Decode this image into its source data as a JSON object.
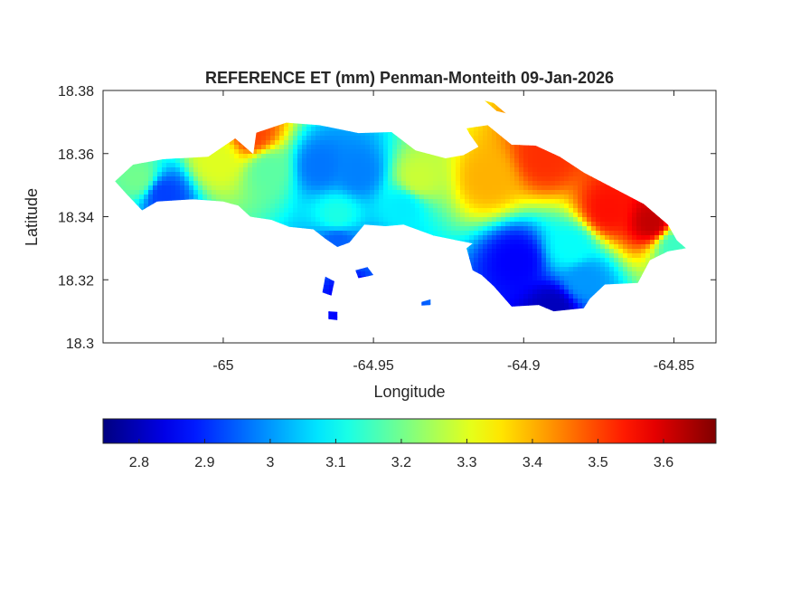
{
  "chart_data": {
    "type": "heatmap",
    "title": "REFERENCE ET (mm) Penman-Monteith 09-Jan-2026",
    "xlabel": "Longitude",
    "ylabel": "Latitude",
    "xlim": [
      -65.04,
      -64.836
    ],
    "ylim": [
      18.3,
      18.38
    ],
    "xticks": [
      -65,
      -64.95,
      -64.9,
      -64.85
    ],
    "xtick_labels": [
      "-65",
      "-64.95",
      "-64.9",
      "-64.85"
    ],
    "yticks": [
      18.3,
      18.32,
      18.34,
      18.36,
      18.38
    ],
    "ytick_labels": [
      "18.3",
      "18.32",
      "18.34",
      "18.36",
      "18.38"
    ],
    "grid": false,
    "colormap": "jet",
    "colorbar": {
      "position": "bottom",
      "range": [
        2.745,
        3.68
      ],
      "ticks": [
        2.8,
        2.9,
        3.0,
        3.1,
        3.2,
        3.3,
        3.4,
        3.5,
        3.6
      ],
      "tick_labels": [
        "2.8",
        "2.9",
        "3",
        "3.1",
        "3.2",
        "3.3",
        "3.4",
        "3.5",
        "3.6"
      ]
    },
    "value_blobs": [
      {
        "lon": -64.893,
        "lat": 18.359,
        "value": 3.52
      },
      {
        "lon": -64.872,
        "lat": 18.342,
        "value": 3.55
      },
      {
        "lon": -64.857,
        "lat": 18.338,
        "value": 3.62
      },
      {
        "lon": -64.912,
        "lat": 18.352,
        "value": 3.4
      },
      {
        "lon": -64.935,
        "lat": 18.352,
        "value": 3.28
      },
      {
        "lon": -64.884,
        "lat": 18.33,
        "value": 3.1
      },
      {
        "lon": -64.902,
        "lat": 18.326,
        "value": 2.86
      },
      {
        "lon": -64.88,
        "lat": 18.32,
        "value": 3.0
      },
      {
        "lon": -64.955,
        "lat": 18.354,
        "value": 2.98
      },
      {
        "lon": -64.968,
        "lat": 18.356,
        "value": 2.97
      },
      {
        "lon": -64.985,
        "lat": 18.355,
        "value": 3.18
      },
      {
        "lon": -64.99,
        "lat": 18.366,
        "value": 3.5
      },
      {
        "lon": -65.02,
        "lat": 18.347,
        "value": 2.92
      },
      {
        "lon": -65.028,
        "lat": 18.352,
        "value": 3.2
      },
      {
        "lon": -65.002,
        "lat": 18.358,
        "value": 3.3
      },
      {
        "lon": -64.962,
        "lat": 18.34,
        "value": 3.12
      },
      {
        "lon": -64.94,
        "lat": 18.343,
        "value": 3.08
      },
      {
        "lon": -64.85,
        "lat": 18.331,
        "value": 3.15
      },
      {
        "lon": -64.962,
        "lat": 18.332,
        "value": 2.95
      },
      {
        "lon": -64.948,
        "lat": 18.325,
        "value": 2.94
      },
      {
        "lon": -64.955,
        "lat": 18.315,
        "value": 2.85
      },
      {
        "lon": -64.89,
        "lat": 18.311,
        "value": 2.8
      }
    ],
    "land_outline": [
      [
        -65.036,
        18.3512
      ],
      [
        -65.03,
        18.3565
      ],
      [
        -65.02,
        18.3582
      ],
      [
        -65.005,
        18.359
      ],
      [
        -64.996,
        18.3648
      ],
      [
        -64.99,
        18.3598
      ],
      [
        -64.989,
        18.3666
      ],
      [
        -64.979,
        18.3698
      ],
      [
        -64.968,
        18.369
      ],
      [
        -64.955,
        18.3665
      ],
      [
        -64.944,
        18.3668
      ],
      [
        -64.936,
        18.361
      ],
      [
        -64.926,
        18.3585
      ],
      [
        -64.92,
        18.3595
      ],
      [
        -64.915,
        18.3622
      ],
      [
        -64.918,
        18.3662
      ],
      [
        -64.919,
        18.368
      ],
      [
        -64.912,
        18.369
      ],
      [
        -64.904,
        18.3628
      ],
      [
        -64.896,
        18.3625
      ],
      [
        -64.888,
        18.359
      ],
      [
        -64.88,
        18.354
      ],
      [
        -64.87,
        18.349
      ],
      [
        -64.86,
        18.344
      ],
      [
        -64.852,
        18.3375
      ],
      [
        -64.849,
        18.3325
      ],
      [
        -64.846,
        18.33
      ],
      [
        -64.852,
        18.329
      ],
      [
        -64.858,
        18.3262
      ],
      [
        -64.862,
        18.319
      ],
      [
        -64.873,
        18.3185
      ],
      [
        -64.878,
        18.314
      ],
      [
        -64.88,
        18.311
      ],
      [
        -64.89,
        18.31
      ],
      [
        -64.895,
        18.312
      ],
      [
        -64.904,
        18.3115
      ],
      [
        -64.91,
        18.318
      ],
      [
        -64.914,
        18.3215
      ],
      [
        -64.917,
        18.323
      ],
      [
        -64.919,
        18.33
      ],
      [
        -64.917,
        18.3315
      ],
      [
        -64.93,
        18.334
      ],
      [
        -64.94,
        18.3375
      ],
      [
        -64.946,
        18.337
      ],
      [
        -64.953,
        18.3375
      ],
      [
        -64.958,
        18.3318
      ],
      [
        -64.962,
        18.3304
      ],
      [
        -64.966,
        18.333
      ],
      [
        -64.97,
        18.336
      ],
      [
        -64.978,
        18.3368
      ],
      [
        -64.984,
        18.339
      ],
      [
        -64.991,
        18.34
      ],
      [
        -64.995,
        18.3435
      ],
      [
        -65.0,
        18.3448
      ],
      [
        -65.01,
        18.3455
      ],
      [
        -65.022,
        18.3448
      ],
      [
        -65.027,
        18.342
      ],
      [
        -65.032,
        18.347
      ],
      [
        -65.036,
        18.3512
      ]
    ],
    "islets": [
      [
        [
          -64.956,
          18.323
        ],
        [
          -64.952,
          18.324
        ],
        [
          -64.95,
          18.3215
        ],
        [
          -64.955,
          18.3205
        ]
      ],
      [
        [
          -64.966,
          18.321
        ],
        [
          -64.963,
          18.3195
        ],
        [
          -64.964,
          18.315
        ],
        [
          -64.967,
          18.316
        ]
      ],
      [
        [
          -64.965,
          18.31
        ],
        [
          -64.962,
          18.3098
        ],
        [
          -64.962,
          18.3072
        ],
        [
          -64.965,
          18.3075
        ]
      ],
      [
        [
          -64.913,
          18.3768
        ],
        [
          -64.91,
          18.376
        ],
        [
          -64.906,
          18.3728
        ],
        [
          -64.909,
          18.3735
        ]
      ],
      [
        [
          -64.934,
          18.313
        ],
        [
          -64.931,
          18.3138
        ],
        [
          -64.931,
          18.312
        ],
        [
          -64.934,
          18.3118
        ]
      ]
    ]
  }
}
